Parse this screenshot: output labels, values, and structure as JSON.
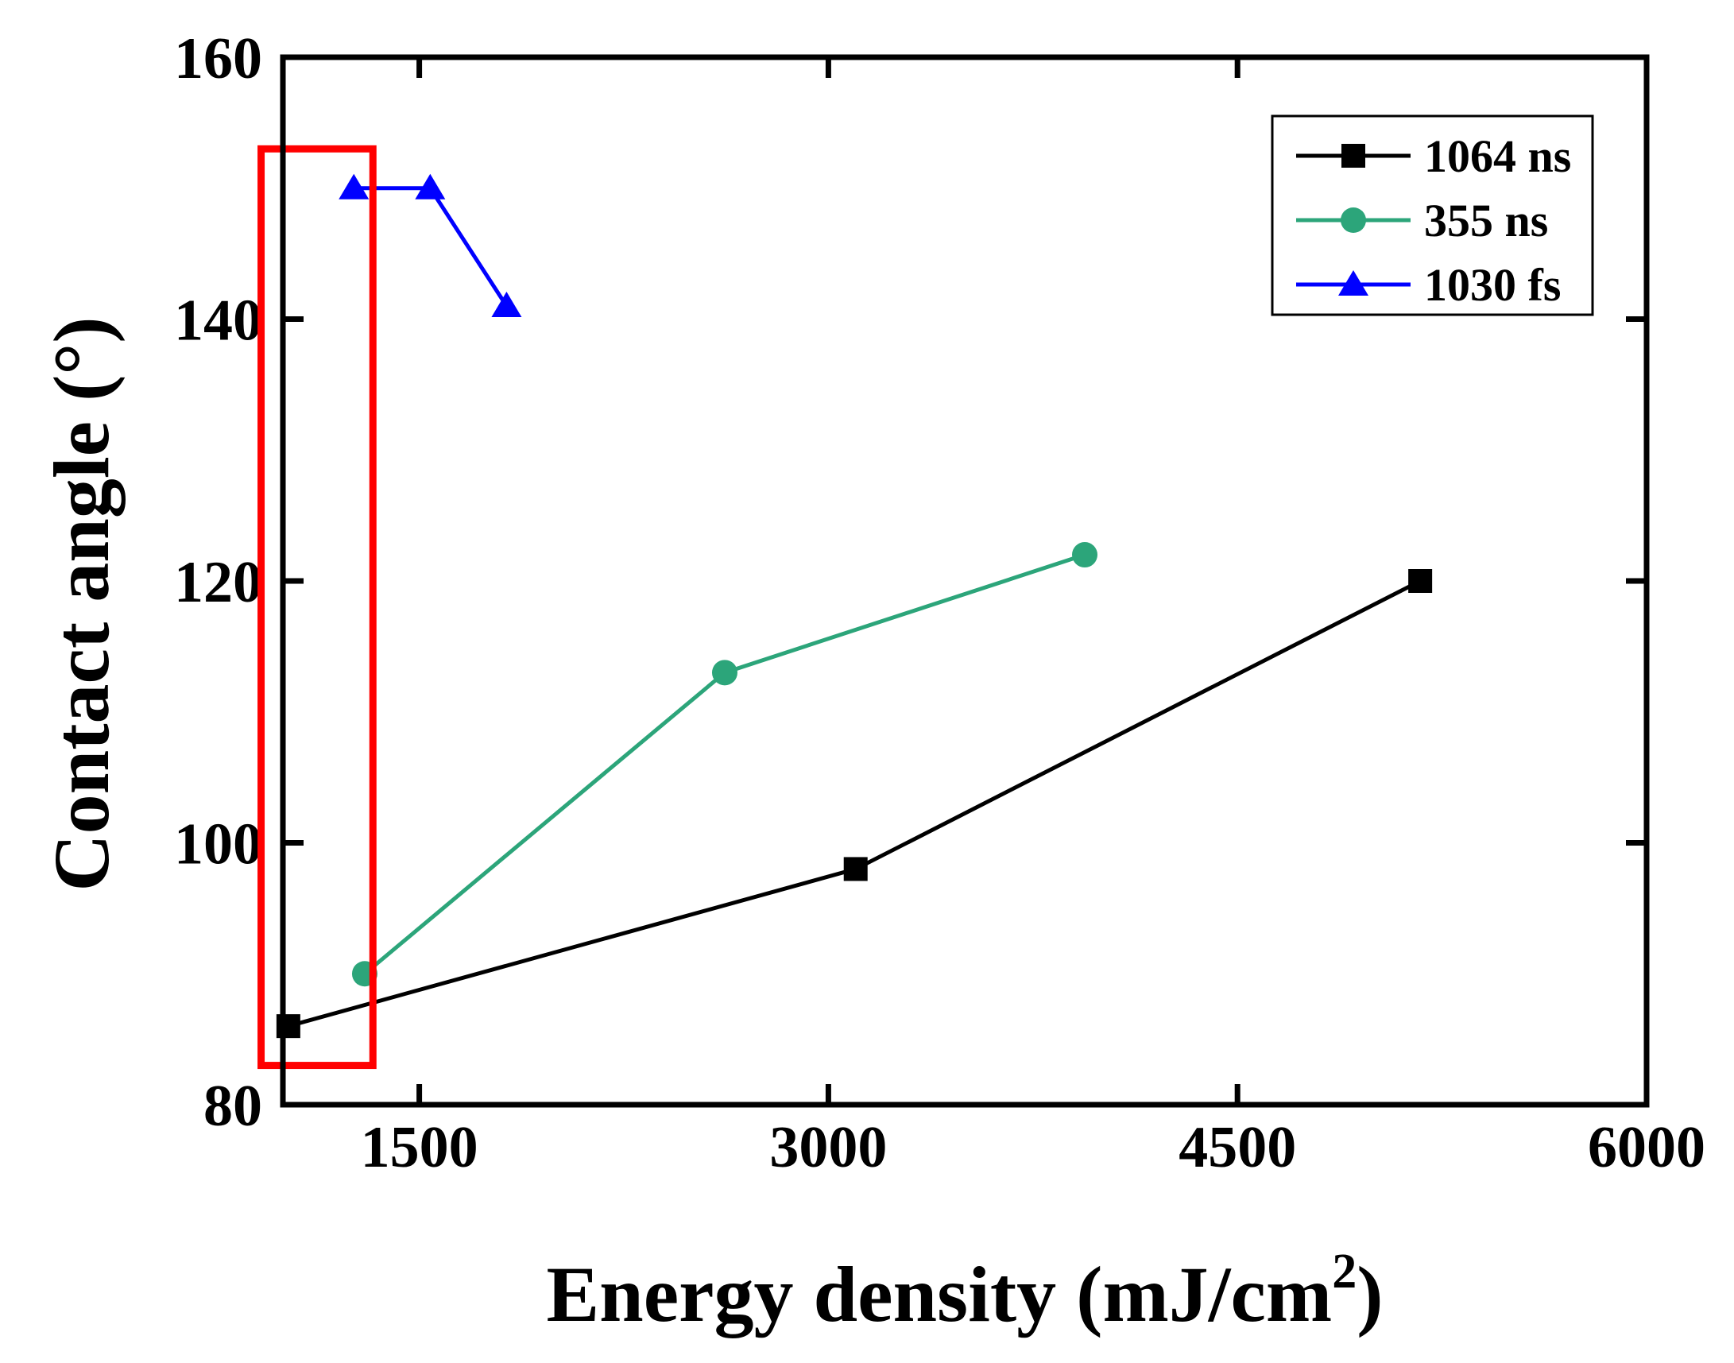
{
  "chart_data": {
    "type": "line",
    "xlabel": "Energy density (mJ/cm",
    "xlabel_sup": "2",
    "xlabel_tail": ")",
    "ylabel": "Contact angle (°)",
    "xlim": [
      1000,
      6000
    ],
    "ylim": [
      80,
      160
    ],
    "xticks": [
      "1500",
      "3000",
      "4500",
      "6000"
    ],
    "xtick_values": [
      1500,
      3000,
      4500,
      6000
    ],
    "yticks": [
      "80",
      "100",
      "120",
      "140",
      "160"
    ],
    "ytick_values": [
      80,
      100,
      120,
      140,
      160
    ],
    "legend_position": "top-right",
    "series": [
      {
        "name": "1064 ns",
        "color": "#000000",
        "marker": "square",
        "x": [
          1020,
          3100,
          5170
        ],
        "y": [
          86,
          98,
          120
        ]
      },
      {
        "name": "355 ns",
        "color": "#2ca57a",
        "marker": "circle",
        "x": [
          1300,
          2620,
          3940
        ],
        "y": [
          90,
          113,
          122
        ]
      },
      {
        "name": "1030 fs",
        "color": "#0000ff",
        "marker": "triangle",
        "x": [
          1260,
          1540,
          1820
        ],
        "y": [
          150,
          150,
          141
        ]
      }
    ],
    "highlight_box": {
      "color": "#ff0000",
      "x_range": [
        920,
        1330
      ],
      "y_range": [
        83,
        153
      ]
    }
  }
}
